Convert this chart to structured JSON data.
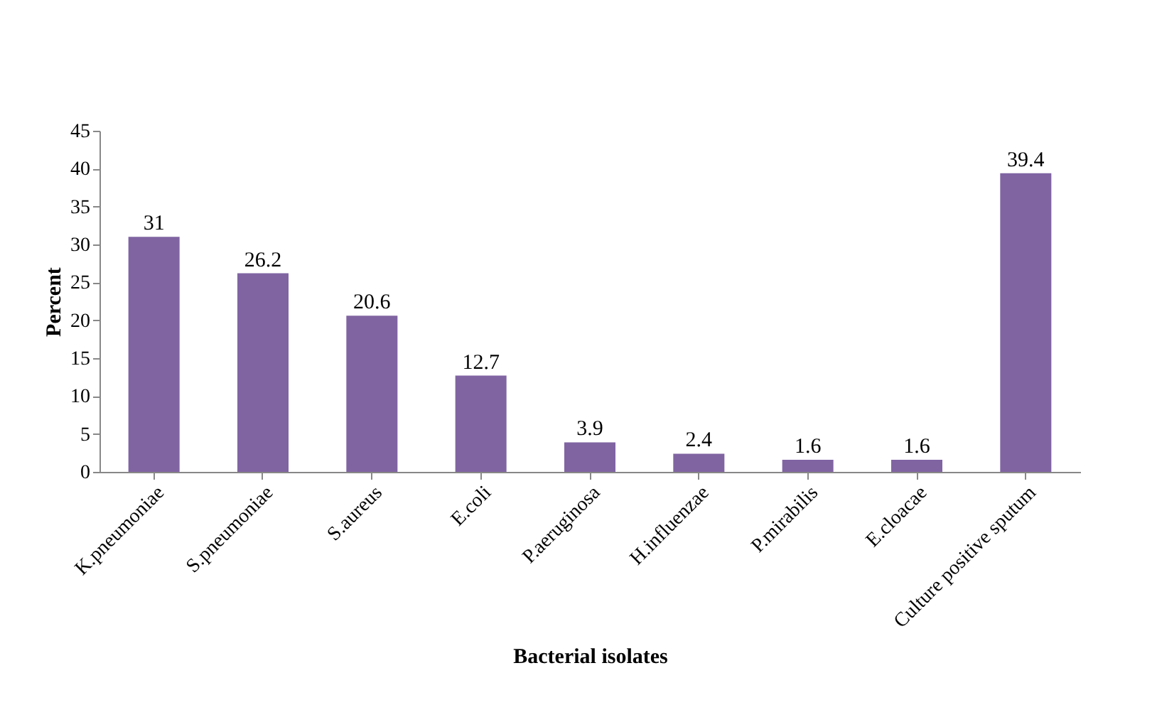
{
  "chart_data": {
    "type": "bar",
    "xlabel": "Bacterial isolates",
    "ylabel": "Percent",
    "categories": [
      "K.pneumoniae",
      "S.pneumoniae",
      "S.aureus",
      "E.coli",
      "P.aeruginosa",
      "H.influenzae",
      "P.mirabilis",
      "E.cloacae",
      "Culture positive sputum"
    ],
    "values": [
      31,
      26.2,
      20.6,
      12.7,
      3.9,
      2.4,
      1.6,
      1.6,
      39.4
    ],
    "color": "#8064a2",
    "ylim": [
      0,
      45
    ],
    "yticks": [
      0,
      5,
      10,
      15,
      20,
      25,
      30,
      35,
      40,
      45
    ],
    "grid": false,
    "data_labels": true
  }
}
